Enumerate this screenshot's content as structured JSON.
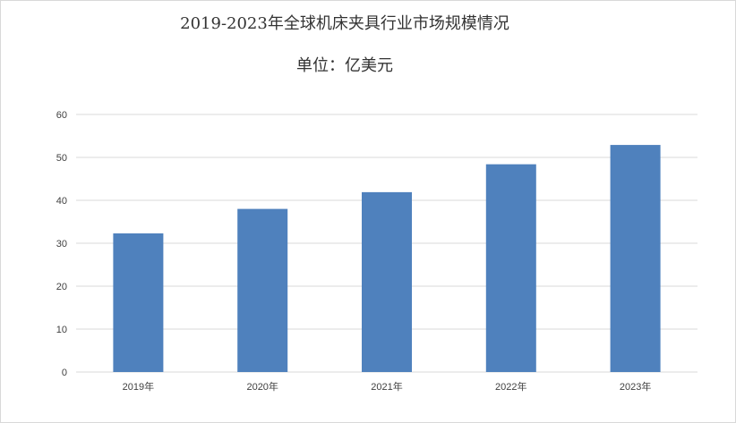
{
  "chart_data": {
    "type": "bar",
    "title": "2019-2023年全球机床夹具行业市场规模情况",
    "subtitle": "单位：亿美元",
    "categories": [
      "2019年",
      "2020年",
      "2021年",
      "2022年",
      "2023年"
    ],
    "values": [
      32.3,
      38.0,
      41.9,
      48.4,
      52.9
    ],
    "ylim": [
      0,
      60
    ],
    "yticks": [
      0,
      10,
      20,
      30,
      40,
      50,
      60
    ],
    "grid": true,
    "legend": "none",
    "bar_color": "#4f81bd",
    "grid_color": "#d9d9d9"
  }
}
